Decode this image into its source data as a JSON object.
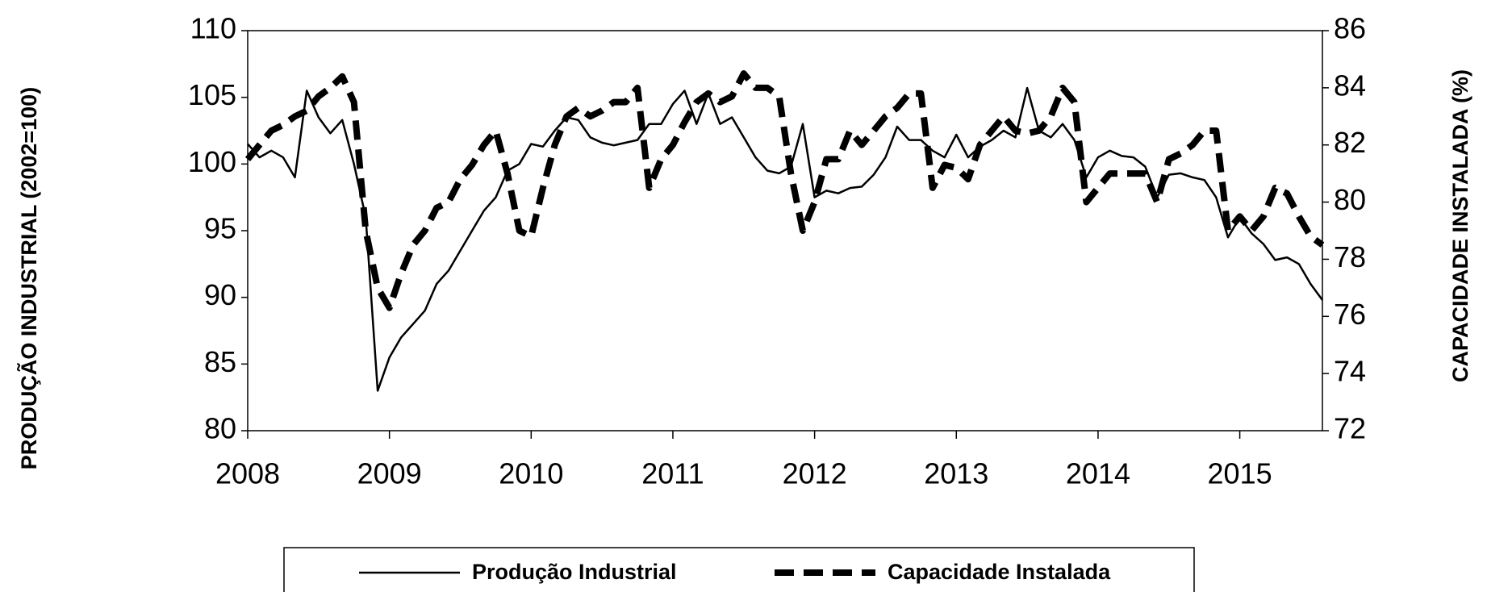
{
  "chart_data": {
    "type": "line",
    "x": [
      2008,
      2008.083,
      2008.167,
      2008.25,
      2008.333,
      2008.417,
      2008.5,
      2008.583,
      2008.667,
      2008.75,
      2008.833,
      2008.917,
      2009,
      2009.083,
      2009.167,
      2009.25,
      2009.333,
      2009.417,
      2009.5,
      2009.583,
      2009.667,
      2009.75,
      2009.833,
      2009.917,
      2010,
      2010.083,
      2010.167,
      2010.25,
      2010.333,
      2010.417,
      2010.5,
      2010.583,
      2010.667,
      2010.75,
      2010.833,
      2010.917,
      2011,
      2011.083,
      2011.167,
      2011.25,
      2011.333,
      2011.417,
      2011.5,
      2011.583,
      2011.667,
      2011.75,
      2011.833,
      2011.917,
      2012,
      2012.083,
      2012.167,
      2012.25,
      2012.333,
      2012.417,
      2012.5,
      2012.583,
      2012.667,
      2012.75,
      2012.833,
      2012.917,
      2013,
      2013.083,
      2013.167,
      2013.25,
      2013.333,
      2013.417,
      2013.5,
      2013.583,
      2013.667,
      2013.75,
      2013.833,
      2013.917,
      2014,
      2014.083,
      2014.167,
      2014.25,
      2014.333,
      2014.417,
      2014.5,
      2014.583,
      2014.667,
      2014.75,
      2014.833,
      2014.917,
      2015,
      2015.083,
      2015.167,
      2015.25,
      2015.333,
      2015.417,
      2015.5,
      2015.583
    ],
    "series": [
      {
        "name": "Produção Industrial",
        "color": "#000000",
        "style": "solid",
        "values": [
          101.5,
          100.5,
          101,
          100.5,
          99,
          105.5,
          103.5,
          102.3,
          103.3,
          100,
          96,
          83,
          85.5,
          87,
          88,
          89,
          91,
          92,
          93.5,
          95,
          96.5,
          97.5,
          99.5,
          100,
          101.5,
          101.3,
          102.5,
          103.5,
          103.3,
          102,
          101.6,
          101.4,
          101.6,
          101.8,
          103,
          103,
          104.5,
          105.5,
          103,
          105.3,
          103,
          103.5,
          102,
          100.5,
          99.5,
          99.3,
          99.8,
          103,
          97.5,
          98,
          97.8,
          98.2,
          98.3,
          99.2,
          100.5,
          102.8,
          101.8,
          101.8,
          101,
          100.5,
          102.2,
          100.5,
          101.3,
          101.8,
          102.5,
          102,
          105.7,
          102.5,
          102,
          103,
          101.8,
          99,
          100.5,
          101,
          100.6,
          100.5,
          99.8,
          97.5,
          99.2,
          99.3,
          99,
          98.8,
          97.5,
          94.5,
          96,
          94.8,
          94,
          92.8,
          93,
          92.5,
          91,
          89.8
        ]
      },
      {
        "name": "Capacidade Instalada",
        "color": "#000000",
        "style": "dashed",
        "axis": "y2",
        "values": [
          81.5,
          82,
          82.5,
          82.7,
          83,
          83.2,
          83.7,
          84,
          84.4,
          83.5,
          79,
          77,
          76.3,
          77.5,
          78.5,
          79,
          79.8,
          80,
          80.8,
          81.3,
          82,
          82.5,
          81,
          79,
          78.8,
          80.5,
          82,
          83,
          83.3,
          83,
          83.2,
          83.5,
          83.5,
          84,
          80.5,
          81.5,
          82,
          82.8,
          83.5,
          83.8,
          83.5,
          83.7,
          84.5,
          84,
          84,
          83.7,
          81,
          79,
          80,
          81.5,
          81.5,
          82.5,
          82,
          82.5,
          83,
          83.3,
          83.8,
          83.8,
          80.5,
          81.3,
          81.2,
          80.8,
          82,
          82.5,
          83,
          82.5,
          82.4,
          82.5,
          83,
          84,
          83.5,
          80,
          80.5,
          81,
          81,
          81,
          81,
          80,
          81.5,
          81.7,
          82,
          82.5,
          82.5,
          79,
          79.5,
          79,
          79.5,
          80.5,
          80.3,
          79.5,
          78.8,
          78.5
        ]
      }
    ],
    "y_label": "PRODUÇÃO INDUSTRIAL  (2002=100)",
    "y2_label": "CAPACIDADE INSTALADA (%)",
    "xlim": [
      2008,
      2015.583
    ],
    "xticks": [
      2008,
      2009,
      2010,
      2011,
      2012,
      2013,
      2014,
      2015
    ],
    "ylim": [
      80,
      110
    ],
    "yticks": [
      80,
      85,
      90,
      95,
      100,
      105,
      110
    ],
    "y2lim": [
      72,
      86
    ],
    "y2ticks": [
      72,
      74,
      76,
      78,
      80,
      82,
      84,
      86
    ],
    "grid": false,
    "legend": "bottom"
  }
}
